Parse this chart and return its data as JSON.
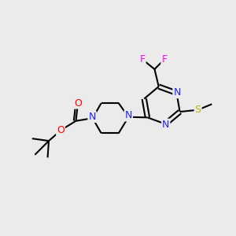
{
  "background_color": "#ebebeb",
  "atom_colors": {
    "C": "#000000",
    "N": "#2020ff",
    "O": "#ff0000",
    "F": "#ff00ff",
    "S": "#b8b800"
  },
  "figsize": [
    3.0,
    3.0
  ],
  "dpi": 100
}
